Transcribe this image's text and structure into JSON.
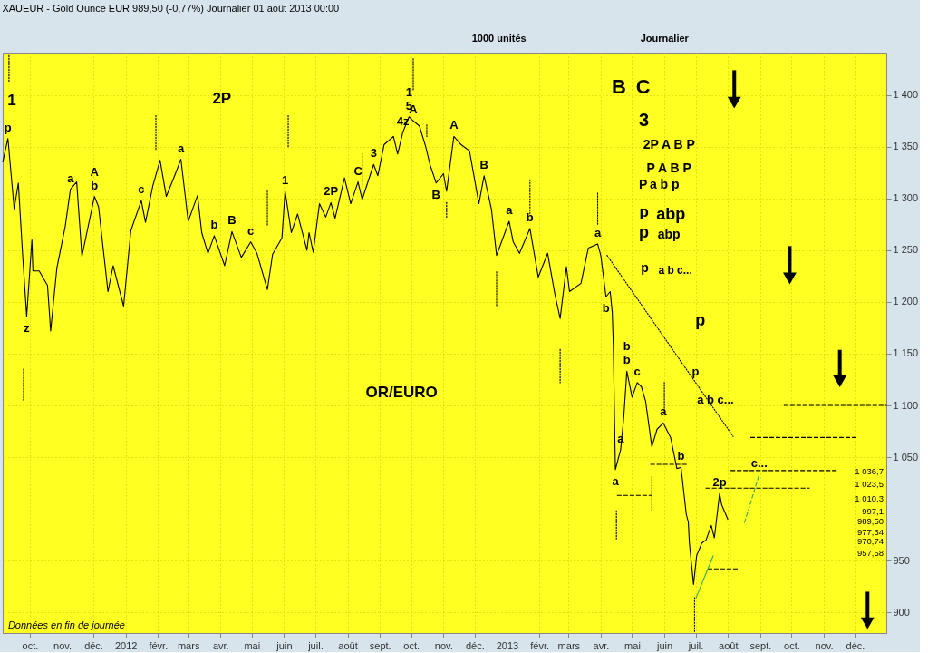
{
  "chart_data": {
    "type": "line",
    "title": "XAUEUR - Gold Ounce EUR   989,50 (-0,77%)   Journalier  01 août 2013 00:00",
    "x": [
      "2011-09-05",
      "2011-09-10",
      "2011-09-16",
      "2011-09-20",
      "2011-09-24",
      "2011-09-28",
      "2011-10-03",
      "2011-10-04",
      "2011-10-10",
      "2011-10-18",
      "2011-10-21",
      "2011-10-27",
      "2011-11-04",
      "2011-11-09",
      "2011-11-15",
      "2011-11-20",
      "2011-12-02",
      "2011-12-06",
      "2011-12-15",
      "2011-12-20",
      "2011-12-30",
      "2012-01-06",
      "2012-01-16",
      "2012-01-20",
      "2012-01-27",
      "2012-02-03",
      "2012-02-09",
      "2012-02-17",
      "2012-02-23",
      "2012-03-01",
      "2012-03-10",
      "2012-03-14",
      "2012-03-20",
      "2012-03-26",
      "2012-04-05",
      "2012-04-12",
      "2012-04-21",
      "2012-04-30",
      "2012-05-06",
      "2012-05-16",
      "2012-05-21",
      "2012-05-30",
      "2012-06-02",
      "2012-06-08",
      "2012-06-14",
      "2012-06-23",
      "2012-06-25",
      "2012-06-29",
      "2012-07-05",
      "2012-07-11",
      "2012-07-16",
      "2012-07-20",
      "2012-07-29",
      "2012-08-04",
      "2012-08-11",
      "2012-08-15",
      "2012-08-26",
      "2012-08-30",
      "2012-09-05",
      "2012-09-14",
      "2012-09-18",
      "2012-09-23",
      "2012-09-29",
      "2012-10-03",
      "2012-10-09",
      "2012-10-15",
      "2012-10-19",
      "2012-10-25",
      "2012-11-01",
      "2012-11-04",
      "2012-11-11",
      "2012-11-18",
      "2012-11-26",
      "2012-12-05",
      "2012-12-10",
      "2012-12-17",
      "2012-12-22",
      "2012-12-26",
      "2013-01-03",
      "2013-01-07",
      "2013-01-13",
      "2013-01-23",
      "2013-01-31",
      "2013-02-09",
      "2013-02-16",
      "2013-02-21",
      "2013-02-27",
      "2013-03-02",
      "2013-03-13",
      "2013-03-20",
      "2013-03-29",
      "2013-04-01",
      "2013-04-06",
      "2013-04-10",
      "2013-04-12",
      "2013-04-13",
      "2013-04-15",
      "2013-04-20",
      "2013-04-23",
      "2013-04-26",
      "2013-05-01",
      "2013-05-06",
      "2013-05-10",
      "2013-05-14",
      "2013-05-20",
      "2013-05-25",
      "2013-05-31",
      "2013-06-07",
      "2013-06-13",
      "2013-06-17",
      "2013-06-22",
      "2013-06-24",
      "2013-06-25",
      "2013-06-29",
      "2013-07-02",
      "2013-07-07",
      "2013-07-11",
      "2013-07-16",
      "2013-07-19",
      "2013-07-24",
      "2013-07-26",
      "2013-08-01"
    ],
    "series": [
      {
        "color": "#000000",
        "values": [
          1335,
          1358,
          1290,
          1315,
          1247,
          1186,
          1260,
          1230,
          1230,
          1216,
          1172,
          1233,
          1273,
          1309,
          1316,
          1244,
          1302,
          1292,
          1210,
          1235,
          1196,
          1269,
          1298,
          1277,
          1312,
          1337,
          1302,
          1322,
          1338,
          1278,
          1303,
          1267,
          1247,
          1264,
          1235,
          1268,
          1243,
          1258,
          1247,
          1212,
          1246,
          1262,
          1307,
          1267,
          1285,
          1250,
          1267,
          1248,
          1295,
          1282,
          1296,
          1281,
          1320,
          1295,
          1316,
          1299,
          1333,
          1322,
          1352,
          1360,
          1343,
          1364,
          1379,
          1375,
          1370,
          1350,
          1333,
          1315,
          1324,
          1307,
          1360,
          1352,
          1346,
          1295,
          1322,
          1290,
          1245,
          1256,
          1278,
          1258,
          1247,
          1271,
          1224,
          1247,
          1207,
          1184,
          1234,
          1210,
          1218,
          1252,
          1256,
          1245,
          1205,
          1210,
          1190,
          1159,
          1038,
          1057,
          1088,
          1133,
          1108,
          1122,
          1118,
          1104,
          1060,
          1077,
          1083,
          1069,
          1039,
          1040,
          995,
          987,
          967,
          927,
          955,
          967,
          970,
          984,
          972,
          1015,
          1004,
          989.5
        ]
      },
      {
        "type": "line",
        "color": "#000000",
        "line_style": "dotted",
        "x": [
          "2013-04-07",
          "2013-08-06"
        ],
        "values": [
          1245,
          1070
        ]
      },
      {
        "type": "line",
        "color": "#000000",
        "line_style": "dashed",
        "x": [
          "2013-09-24",
          "2013-12-31"
        ],
        "values": [
          1100,
          1100
        ]
      },
      {
        "type": "line",
        "color": "#000000",
        "line_style": "dashed",
        "x": [
          "2013-08-23",
          "2013-12-03"
        ],
        "values": [
          1069,
          1069
        ]
      },
      {
        "type": "line",
        "color": "#000000",
        "line_style": "dashed",
        "x": [
          "2013-08-04",
          "2013-11-14"
        ],
        "values": [
          1037,
          1037
        ]
      },
      {
        "type": "line",
        "color": "#000000",
        "line_style": "dashed",
        "x": [
          "2013-07-11",
          "2013-10-18"
        ],
        "values": [
          1020,
          1020
        ]
      },
      {
        "type": "line",
        "color": "#000000",
        "line_style": "dashed",
        "x": [
          "2013-05-19",
          "2013-06-24"
        ],
        "values": [
          1043,
          1043
        ]
      },
      {
        "type": "line",
        "color": "#000000",
        "line_style": "dashed",
        "x": [
          "2013-04-17",
          "2013-05-20"
        ],
        "values": [
          1013,
          1013
        ]
      },
      {
        "type": "line",
        "color": "#000000",
        "line_style": "dashed",
        "x": [
          "2013-07-13",
          "2013-08-12"
        ],
        "values": [
          942,
          942
        ]
      },
      {
        "type": "line",
        "color": "#000000",
        "line_style": "dotted",
        "x": [
          "2011-09-11",
          "2011-09-11"
        ],
        "values": [
          1438,
          1413
        ]
      },
      {
        "type": "line",
        "color": "#000000",
        "line_style": "dotted",
        "x": [
          "2011-09-25",
          "2011-09-25"
        ],
        "values": [
          1135,
          1105
        ]
      },
      {
        "type": "line",
        "color": "#000000",
        "line_style": "dotted",
        "x": [
          "2012-01-30",
          "2012-01-30"
        ],
        "values": [
          1380,
          1347
        ]
      },
      {
        "type": "line",
        "color": "#000000",
        "line_style": "dotted",
        "x": [
          "2012-05-16",
          "2012-05-16"
        ],
        "values": [
          1307,
          1274
        ]
      },
      {
        "type": "line",
        "color": "#000000",
        "line_style": "dotted",
        "x": [
          "2012-06-05",
          "2012-06-05"
        ],
        "values": [
          1380,
          1349
        ]
      },
      {
        "type": "line",
        "color": "#000000",
        "line_style": "dotted",
        "x": [
          "2012-08-15",
          "2012-08-15"
        ],
        "values": [
          1343,
          1312
        ]
      },
      {
        "type": "line",
        "color": "#000000",
        "line_style": "dotted",
        "x": [
          "2012-10-03",
          "2012-10-03"
        ],
        "values": [
          1435,
          1404
        ]
      },
      {
        "type": "line",
        "color": "#000000",
        "line_style": "dotted",
        "x": [
          "2012-10-16",
          "2012-10-16"
        ],
        "values": [
          1371,
          1360
        ]
      },
      {
        "type": "line",
        "color": "#000000",
        "line_style": "dotted",
        "x": [
          "2012-11-04",
          "2012-11-04"
        ],
        "values": [
          1296,
          1282
        ]
      },
      {
        "type": "line",
        "color": "#000000",
        "line_style": "dotted",
        "x": [
          "2012-12-22",
          "2012-12-22"
        ],
        "values": [
          1229,
          1196
        ]
      },
      {
        "type": "line",
        "color": "#000000",
        "line_style": "dotted",
        "x": [
          "2013-01-23",
          "2013-01-23"
        ],
        "values": [
          1318,
          1285
        ]
      },
      {
        "type": "line",
        "color": "#000000",
        "line_style": "dotted",
        "x": [
          "2013-02-21",
          "2013-02-21"
        ],
        "values": [
          1154,
          1122
        ]
      },
      {
        "type": "line",
        "color": "#000000",
        "line_style": "dotted",
        "x": [
          "2013-03-29",
          "2013-03-29"
        ],
        "values": [
          1305,
          1275
        ]
      },
      {
        "type": "line",
        "color": "#000000",
        "line_style": "dotted",
        "x": [
          "2013-04-16",
          "2013-04-16"
        ],
        "values": [
          998,
          971
        ]
      },
      {
        "type": "line",
        "color": "#000000",
        "line_style": "dotted",
        "x": [
          "2013-05-20",
          "2013-05-20"
        ],
        "values": [
          1031,
          999
        ]
      },
      {
        "type": "line",
        "color": "#000000",
        "line_style": "dotted",
        "x": [
          "2013-06-01",
          "2013-06-01"
        ],
        "values": [
          1122,
          1091
        ]
      },
      {
        "type": "line",
        "color": "#000000",
        "line_style": "dotted",
        "x": [
          "2013-06-30",
          "2013-06-30"
        ],
        "values": [
          914,
          880
        ]
      },
      {
        "type": "line",
        "color": "#ff2222",
        "line_style": "dashed",
        "x": [
          "2013-08-03",
          "2013-08-03"
        ],
        "values": [
          1036,
          995
        ]
      },
      {
        "type": "line",
        "color": "#22aa44",
        "line_style": "dotted",
        "x": [
          "2013-08-03",
          "2013-08-03"
        ],
        "values": [
          989,
          952
        ]
      },
      {
        "type": "line",
        "color": "#33aa55",
        "line_style": "solid",
        "x": [
          "2013-07-01",
          "2013-07-18"
        ],
        "values": [
          913,
          955
        ]
      },
      {
        "type": "line",
        "color": "#33aa55",
        "line_style": "dashed",
        "x": [
          "2013-08-17",
          "2013-08-31"
        ],
        "values": [
          987,
          1033
        ]
      }
    ],
    "xlim": [
      "2011-09-05",
      "2013-12-31"
    ],
    "xticks": [
      {
        "value": "2011-10-01",
        "label": "oct."
      },
      {
        "value": "2011-11-01",
        "label": "nov."
      },
      {
        "value": "2011-12-01",
        "label": "déc."
      },
      {
        "value": "2012-01-01",
        "label": "2012"
      },
      {
        "value": "2012-02-01",
        "label": "févr."
      },
      {
        "value": "2012-03-01",
        "label": "mars"
      },
      {
        "value": "2012-04-01",
        "label": "avr."
      },
      {
        "value": "2012-05-01",
        "label": "mai"
      },
      {
        "value": "2012-06-01",
        "label": "juin"
      },
      {
        "value": "2012-07-01",
        "label": "juil."
      },
      {
        "value": "2012-08-01",
        "label": "août"
      },
      {
        "value": "2012-09-01",
        "label": "sept."
      },
      {
        "value": "2012-10-01",
        "label": "oct."
      },
      {
        "value": "2012-11-01",
        "label": "nov."
      },
      {
        "value": "2012-12-01",
        "label": "déc."
      },
      {
        "value": "2013-01-01",
        "label": "2013"
      },
      {
        "value": "2013-02-01",
        "label": "févr."
      },
      {
        "value": "2013-03-01",
        "label": "mars"
      },
      {
        "value": "2013-04-01",
        "label": "avr."
      },
      {
        "value": "2013-05-01",
        "label": "mai"
      },
      {
        "value": "2013-06-01",
        "label": "juin"
      },
      {
        "value": "2013-07-01",
        "label": "juil."
      },
      {
        "value": "2013-08-01",
        "label": "août"
      },
      {
        "value": "2013-09-01",
        "label": "sept."
      },
      {
        "value": "2013-10-01",
        "label": "oct."
      },
      {
        "value": "2013-11-01",
        "label": "nov."
      },
      {
        "value": "2013-12-01",
        "label": "déc."
      }
    ],
    "ylim": [
      880,
      1441
    ],
    "yticks": [
      900,
      950,
      {
        "value": 1050,
        "label": "1 050"
      },
      {
        "value": 1100,
        "label": "1 100"
      },
      {
        "value": 1150,
        "label": "1 150"
      },
      {
        "value": 1200,
        "label": "1 200"
      },
      {
        "value": 1250,
        "label": "1 250"
      },
      {
        "value": 1300,
        "label": "1 300"
      },
      {
        "value": 1350,
        "label": "1 350"
      },
      {
        "value": 1400,
        "label": "1 400"
      }
    ],
    "grid": true,
    "marker": "none",
    "line_style": "solid",
    "annotations": [
      "1000 unités",
      "Journalier",
      "Données en fin de journée",
      "1",
      "2P",
      "OR/EURO",
      "B",
      "C",
      "3",
      "2P  A  B  P",
      "P  A  B  P",
      "P",
      "a b p",
      "p",
      "abp",
      "p",
      "abp",
      "p",
      "a b c...",
      "p",
      {
        "text": "p",
        "x": "2011-09-10",
        "y": 1358
      },
      {
        "text": "z",
        "x": "2011-09-28",
        "y": 1186
      },
      {
        "text": "a",
        "x": "2011-11-09",
        "y": 1309
      },
      {
        "text": "b",
        "x": "2011-12-02",
        "y": 1302
      },
      {
        "text": "A",
        "x": "2011-12-02",
        "y": 1302
      },
      {
        "text": "c",
        "x": "2012-01-16",
        "y": 1298
      },
      {
        "text": "a",
        "x": "2012-02-23",
        "y": 1338
      },
      {
        "text": "b",
        "x": "2012-03-26",
        "y": 1264
      },
      {
        "text": "B",
        "x": "2012-04-12",
        "y": 1268
      },
      {
        "text": "c",
        "x": "2012-04-30",
        "y": 1258
      },
      {
        "text": "1",
        "x": "2012-06-02",
        "y": 1307
      },
      {
        "text": "2P",
        "x": "2012-07-16",
        "y": 1296
      },
      {
        "text": "C",
        "x": "2012-08-11",
        "y": 1316
      },
      {
        "text": "3",
        "x": "2012-08-26",
        "y": 1333
      },
      {
        "text": "4z",
        "x": "2012-09-23",
        "y": 1364
      },
      {
        "text": "5",
        "x": "2012-09-29",
        "y": 1379
      },
      {
        "text": "1",
        "x": "2012-09-29",
        "y": 1379
      },
      {
        "text": "A",
        "x": "2012-10-03",
        "y": 1375
      },
      {
        "text": "B",
        "x": "2012-10-25",
        "y": 1315
      },
      {
        "text": "A",
        "x": "2012-11-11",
        "y": 1360
      },
      {
        "text": "B",
        "x": "2012-12-10",
        "y": 1322
      },
      {
        "text": "a",
        "x": "2013-01-03",
        "y": 1278
      },
      {
        "text": "b",
        "x": "2013-01-23",
        "y": 1271
      },
      {
        "text": "a",
        "x": "2013-03-29",
        "y": 1256
      },
      {
        "text": "b",
        "x": "2013-04-06",
        "y": 1205
      },
      {
        "text": "b",
        "x": "2013-04-26",
        "y": 1133
      },
      {
        "text": "b",
        "x": "2013-04-26",
        "y": 1133
      },
      {
        "text": "c",
        "x": "2013-05-06",
        "y": 1122
      },
      {
        "text": "a",
        "x": "2013-04-20",
        "y": 1057
      },
      {
        "text": "a",
        "x": "2013-05-31",
        "y": 1083
      },
      {
        "text": "b",
        "x": "2013-06-17",
        "y": 1040
      },
      {
        "text": "a",
        "x": "2013-04-15",
        "y": 1038
      },
      {
        "text": "2p",
        "x": "2013-07-24",
        "y": 1015
      },
      {
        "text": "c...",
        "x": "2013-08-31",
        "y": 1033
      },
      {
        "text": "p",
        "x": "2013-07-01",
        "y": 1122
      },
      {
        "text": "a b c...",
        "x": "2013-07-20",
        "y": 1095
      },
      "1 036,7",
      "1 023,5",
      "1 010,3",
      "997,1",
      "989,50",
      "977,34",
      "970,74",
      "957,58"
    ]
  }
}
